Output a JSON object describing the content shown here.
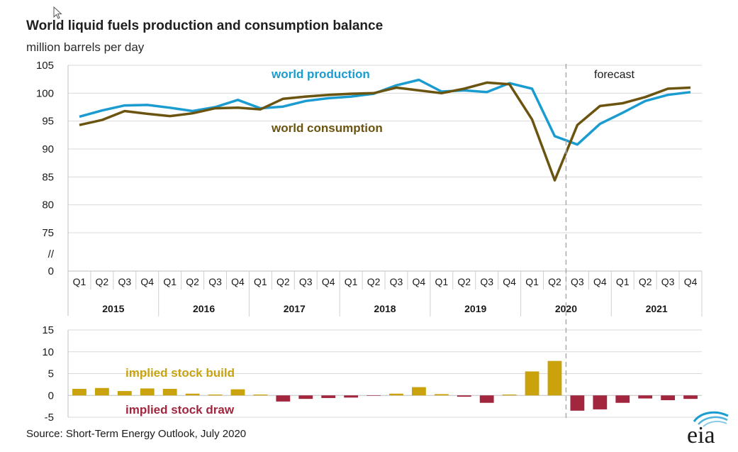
{
  "title": "World liquid fuels production and consumption balance",
  "subtitle": "million barrels per day",
  "source": "Source: Short-Term Energy Outlook, July 2020",
  "logo_text": "eia",
  "colors": {
    "production": "#1a9cd0",
    "consumption": "#6b5410",
    "build": "#c9a20c",
    "draw": "#a3263f",
    "forecast_line": "#aaaaaa",
    "grid": "#d9d9d9"
  },
  "chart_data": [
    {
      "type": "line",
      "quarters": [
        "Q1",
        "Q2",
        "Q3",
        "Q4",
        "Q1",
        "Q2",
        "Q3",
        "Q4",
        "Q1",
        "Q2",
        "Q3",
        "Q4",
        "Q1",
        "Q2",
        "Q3",
        "Q4",
        "Q1",
        "Q2",
        "Q3",
        "Q4",
        "Q1",
        "Q2",
        "Q3",
        "Q4",
        "Q1",
        "Q2",
        "Q3",
        "Q4"
      ],
      "years": [
        "2015",
        "2016",
        "2017",
        "2018",
        "2019",
        "2020",
        "2021"
      ],
      "series": [
        {
          "name": "world production",
          "values": [
            95.8,
            96.9,
            97.8,
            97.9,
            97.4,
            96.8,
            97.5,
            98.8,
            97.3,
            97.6,
            98.6,
            99.1,
            99.4,
            99.9,
            101.4,
            102.4,
            100.3,
            100.5,
            100.2,
            101.8,
            100.8,
            92.3,
            90.8,
            94.5,
            96.5,
            98.6,
            99.7,
            100.2
          ]
        },
        {
          "name": "world consumption",
          "values": [
            94.3,
            95.2,
            96.8,
            96.3,
            95.9,
            96.4,
            97.3,
            97.4,
            97.1,
            99.0,
            99.4,
            99.7,
            99.9,
            100.0,
            101.0,
            100.5,
            100.0,
            100.8,
            101.9,
            101.6,
            95.3,
            84.4,
            94.3,
            97.7,
            98.2,
            99.3,
            100.8,
            101.0
          ]
        }
      ],
      "annotation": "forecast",
      "ylim": [
        75,
        105
      ],
      "yticks": [
        "105",
        "100",
        "95",
        "90",
        "85",
        "80",
        "75",
        "//",
        "0"
      ]
    },
    {
      "type": "bar",
      "series": [
        {
          "name": "implied stock build",
          "values": [
            1.5,
            1.7,
            1.0,
            1.6,
            1.5,
            0.4,
            0.2,
            1.4,
            0.2,
            -1.4,
            -0.8,
            -0.6,
            -0.5,
            -0.1,
            0.4,
            1.9,
            0.3,
            -0.3,
            -1.7,
            0.2,
            5.5,
            7.9,
            -3.5,
            -3.2,
            -1.7,
            -0.7,
            -1.1,
            -0.8
          ]
        }
      ],
      "labels": {
        "build": "implied stock  build",
        "draw": "implied stock draw"
      },
      "ylim": [
        -5,
        15
      ],
      "yticks": [
        "15",
        "10",
        "5",
        "0",
        "-5"
      ]
    }
  ]
}
